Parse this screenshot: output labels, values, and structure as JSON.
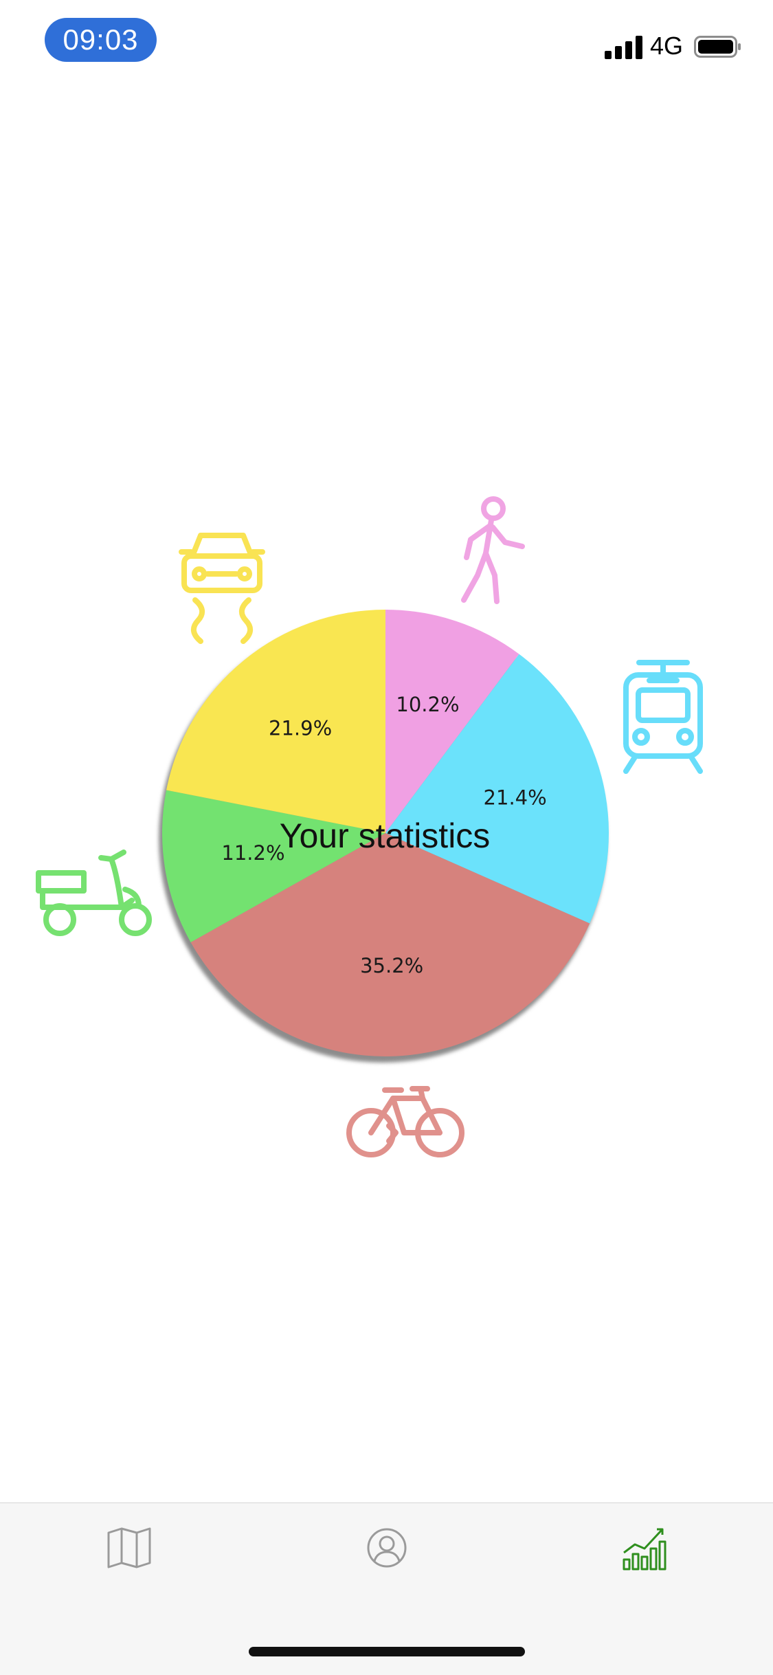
{
  "status_bar": {
    "time": "09:03",
    "network": "4G",
    "signal_icon": "cellular-signal-icon",
    "battery_icon": "battery-icon"
  },
  "chart_data": {
    "type": "pie",
    "title": "Your statistics",
    "slices": [
      {
        "label": "walking",
        "value": 10.2,
        "display": "10.2%",
        "color": "#f0a0e3",
        "icon": "walking-person-icon",
        "icon_color": "#ef9be0"
      },
      {
        "label": "tram",
        "value": 21.4,
        "display": "21.4%",
        "color": "#6be2fb",
        "icon": "tram-icon",
        "icon_color": "#5fdcfa"
      },
      {
        "label": "e-bike",
        "value": 35.2,
        "display": "35.2%",
        "color": "#d6827d",
        "icon": "electric-bike-icon",
        "icon_color": "#df8c86"
      },
      {
        "label": "scooter",
        "value": 11.2,
        "display": "11.2%",
        "color": "#73e270",
        "icon": "scooter-icon",
        "icon_color": "#6fe069"
      },
      {
        "label": "car",
        "value": 21.9,
        "display": "21.9%",
        "color": "#f9e651",
        "icon": "car-icon",
        "icon_color": "#f9e24a"
      }
    ]
  },
  "tab_bar": {
    "tabs": [
      {
        "name": "map",
        "icon": "map-icon",
        "active": false
      },
      {
        "name": "profile",
        "icon": "user-profile-icon",
        "active": false
      },
      {
        "name": "statistics",
        "icon": "bar-chart-trend-icon",
        "active": true
      }
    ],
    "inactive_color": "#9a9a9a",
    "active_color": "#2f8f1e"
  }
}
